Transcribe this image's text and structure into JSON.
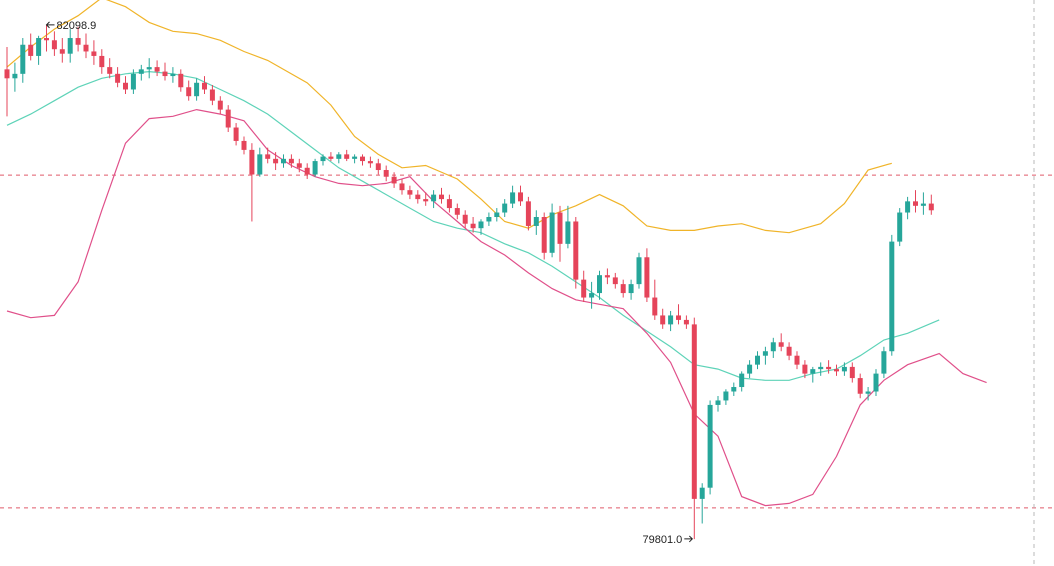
{
  "chart_data": {
    "type": "candlestick",
    "overlay": "bollinger-bands",
    "colors": {
      "up": "#26a69a",
      "down": "#e5445a",
      "upper_band": "#f0b429",
      "middle_band": "#5ed3b8",
      "lower_band": "#e0508a",
      "ref_line": "#e05a6a",
      "crosshair": "#b8b8b8"
    },
    "y_range": [
      79680,
      82210
    ],
    "grid": false,
    "annotations": {
      "high_label": "82098.9",
      "low_label": "79801.0",
      "high_value": 82098.9,
      "low_value": 79801.0
    },
    "reference_levels": [
      81427,
      79940
    ],
    "candles": [
      [
        81900,
        82000,
        81690,
        81860
      ],
      [
        81860,
        81930,
        81800,
        81880
      ],
      [
        81880,
        82040,
        81840,
        82010
      ],
      [
        82010,
        82060,
        81940,
        81960
      ],
      [
        81960,
        82050,
        81920,
        82040
      ],
      [
        82040,
        82100,
        81980,
        82030
      ],
      [
        82030,
        82070,
        81960,
        81990
      ],
      [
        81990,
        82040,
        81930,
        81970
      ],
      [
        81970,
        82080,
        81930,
        82040
      ],
      [
        82040,
        82090,
        81980,
        82010
      ],
      [
        82010,
        82060,
        81950,
        81980
      ],
      [
        81980,
        82030,
        81920,
        81960
      ],
      [
        81960,
        81990,
        81880,
        81910
      ],
      [
        81910,
        81950,
        81860,
        81880
      ],
      [
        81880,
        81910,
        81820,
        81840
      ],
      [
        81840,
        81870,
        81790,
        81810
      ],
      [
        81810,
        81900,
        81790,
        81880
      ],
      [
        81880,
        81920,
        81850,
        81900
      ],
      [
        81900,
        81950,
        81860,
        81910
      ],
      [
        81910,
        81940,
        81870,
        81890
      ],
      [
        81890,
        81930,
        81850,
        81870
      ],
      [
        81870,
        81910,
        81840,
        81880
      ],
      [
        81880,
        81900,
        81800,
        81820
      ],
      [
        81820,
        81850,
        81760,
        81780
      ],
      [
        81780,
        81860,
        81760,
        81840
      ],
      [
        81840,
        81870,
        81790,
        81810
      ],
      [
        81810,
        81830,
        81740,
        81760
      ],
      [
        81760,
        81780,
        81700,
        81720
      ],
      [
        81720,
        81740,
        81620,
        81640
      ],
      [
        81640,
        81660,
        81560,
        81580
      ],
      [
        81580,
        81600,
        81520,
        81540
      ],
      [
        81540,
        81570,
        81220,
        81430
      ],
      [
        81430,
        81550,
        81420,
        81520
      ],
      [
        81520,
        81550,
        81480,
        81500
      ],
      [
        81500,
        81530,
        81450,
        81480
      ],
      [
        81480,
        81520,
        81460,
        81500
      ],
      [
        81500,
        81520,
        81460,
        81480
      ],
      [
        81480,
        81500,
        81440,
        81460
      ],
      [
        81460,
        81480,
        81410,
        81430
      ],
      [
        81430,
        81500,
        81420,
        81490
      ],
      [
        81490,
        81520,
        81470,
        81510
      ],
      [
        81510,
        81530,
        81490,
        81500
      ],
      [
        81500,
        81530,
        81480,
        81520
      ],
      [
        81520,
        81540,
        81490,
        81500
      ],
      [
        81500,
        81520,
        81480,
        81510
      ],
      [
        81510,
        81520,
        81470,
        81490
      ],
      [
        81490,
        81510,
        81460,
        81480
      ],
      [
        81480,
        81500,
        81430,
        81450
      ],
      [
        81450,
        81470,
        81400,
        81420
      ],
      [
        81420,
        81440,
        81370,
        81390
      ],
      [
        81390,
        81410,
        81340,
        81360
      ],
      [
        81360,
        81380,
        81320,
        81340
      ],
      [
        81340,
        81360,
        81300,
        81320
      ],
      [
        81320,
        81350,
        81290,
        81310
      ],
      [
        81310,
        81360,
        81280,
        81340
      ],
      [
        81340,
        81370,
        81300,
        81320
      ],
      [
        81320,
        81340,
        81260,
        81280
      ],
      [
        81280,
        81300,
        81230,
        81250
      ],
      [
        81250,
        81270,
        81190,
        81210
      ],
      [
        81210,
        81240,
        81170,
        81190
      ],
      [
        81190,
        81230,
        81160,
        81220
      ],
      [
        81220,
        81260,
        81200,
        81240
      ],
      [
        81240,
        81280,
        81220,
        81260
      ],
      [
        81260,
        81320,
        81240,
        81300
      ],
      [
        81300,
        81380,
        81280,
        81350
      ],
      [
        81350,
        81380,
        81290,
        81310
      ],
      [
        81310,
        81330,
        81180,
        81200
      ],
      [
        81200,
        81270,
        81160,
        81240
      ],
      [
        81240,
        81260,
        81050,
        81080
      ],
      [
        81080,
        81300,
        81060,
        81260
      ],
      [
        81260,
        81290,
        81040,
        81120
      ],
      [
        81120,
        81290,
        81100,
        81220
      ],
      [
        81220,
        81240,
        80920,
        80960
      ],
      [
        80960,
        81000,
        80860,
        80880
      ],
      [
        80880,
        80950,
        80830,
        80900
      ],
      [
        80900,
        81000,
        80870,
        80980
      ],
      [
        80980,
        81010,
        80940,
        80970
      ],
      [
        80970,
        80990,
        80920,
        80940
      ],
      [
        80940,
        80960,
        80880,
        80900
      ],
      [
        80900,
        80960,
        80870,
        80940
      ],
      [
        80940,
        81080,
        80920,
        81060
      ],
      [
        81060,
        81100,
        80860,
        80880
      ],
      [
        80880,
        80960,
        80780,
        80800
      ],
      [
        80800,
        80830,
        80740,
        80760
      ],
      [
        80760,
        80820,
        80730,
        80800
      ],
      [
        80800,
        80850,
        80760,
        80780
      ],
      [
        80780,
        80800,
        80740,
        80760
      ],
      [
        80760,
        80790,
        79800,
        79980
      ],
      [
        79980,
        80050,
        79870,
        80030
      ],
      [
        80030,
        80420,
        80000,
        80400
      ],
      [
        80400,
        80440,
        80370,
        80420
      ],
      [
        80420,
        80470,
        80400,
        80460
      ],
      [
        80460,
        80500,
        80440,
        80480
      ],
      [
        80480,
        80550,
        80460,
        80540
      ],
      [
        80540,
        80600,
        80520,
        80580
      ],
      [
        80580,
        80640,
        80560,
        80620
      ],
      [
        80620,
        80660,
        80580,
        80640
      ],
      [
        80640,
        80700,
        80610,
        80680
      ],
      [
        80680,
        80720,
        80640,
        80660
      ],
      [
        80660,
        80680,
        80600,
        80620
      ],
      [
        80620,
        80640,
        80560,
        80580
      ],
      [
        80580,
        80600,
        80520,
        80540
      ],
      [
        80540,
        80570,
        80500,
        80560
      ],
      [
        80560,
        80590,
        80530,
        80570
      ],
      [
        80570,
        80600,
        80540,
        80560
      ],
      [
        80560,
        80580,
        80530,
        80550
      ],
      [
        80550,
        80590,
        80530,
        80570
      ],
      [
        80570,
        80590,
        80500,
        80520
      ],
      [
        80520,
        80540,
        80430,
        80450
      ],
      [
        80450,
        80480,
        80420,
        80460
      ],
      [
        80460,
        80560,
        80440,
        80540
      ],
      [
        80540,
        80660,
        80520,
        80640
      ],
      [
        80640,
        81160,
        80620,
        81130
      ],
      [
        81130,
        81280,
        81110,
        81260
      ],
      [
        81260,
        81330,
        81230,
        81310
      ],
      [
        81310,
        81360,
        81260,
        81290
      ],
      [
        81290,
        81350,
        81250,
        81300
      ],
      [
        81300,
        81340,
        81250,
        81270
      ]
    ],
    "upper_band": [
      [
        0,
        81910
      ],
      [
        3,
        82000
      ],
      [
        6,
        82080
      ],
      [
        9,
        82140
      ],
      [
        12,
        82220
      ],
      [
        15,
        82180
      ],
      [
        18,
        82110
      ],
      [
        21,
        82070
      ],
      [
        24,
        82060
      ],
      [
        27,
        82030
      ],
      [
        30,
        81980
      ],
      [
        33,
        81940
      ],
      [
        35,
        81900
      ],
      [
        38,
        81840
      ],
      [
        41,
        81740
      ],
      [
        44,
        81600
      ],
      [
        47,
        81520
      ],
      [
        50,
        81460
      ],
      [
        53,
        81470
      ],
      [
        57,
        81410
      ],
      [
        60,
        81320
      ],
      [
        63,
        81220
      ],
      [
        66,
        81190
      ],
      [
        69,
        81250
      ],
      [
        72,
        81290
      ],
      [
        75,
        81340
      ],
      [
        78,
        81290
      ],
      [
        81,
        81200
      ],
      [
        84,
        81180
      ],
      [
        87,
        81180
      ],
      [
        90,
        81200
      ],
      [
        93,
        81210
      ],
      [
        96,
        81180
      ],
      [
        99,
        81170
      ],
      [
        103,
        81210
      ],
      [
        106,
        81300
      ],
      [
        109,
        81450
      ],
      [
        112,
        81480
      ]
    ],
    "middle_band": [
      [
        0,
        81650
      ],
      [
        3,
        81700
      ],
      [
        6,
        81760
      ],
      [
        9,
        81820
      ],
      [
        12,
        81860
      ],
      [
        15,
        81880
      ],
      [
        18,
        81890
      ],
      [
        21,
        81880
      ],
      [
        24,
        81860
      ],
      [
        27,
        81810
      ],
      [
        30,
        81760
      ],
      [
        33,
        81700
      ],
      [
        36,
        81620
      ],
      [
        39,
        81540
      ],
      [
        42,
        81460
      ],
      [
        45,
        81400
      ],
      [
        48,
        81340
      ],
      [
        51,
        81280
      ],
      [
        54,
        81220
      ],
      [
        57,
        81190
      ],
      [
        60,
        81170
      ],
      [
        63,
        81120
      ],
      [
        66,
        81080
      ],
      [
        69,
        81020
      ],
      [
        72,
        80950
      ],
      [
        75,
        80880
      ],
      [
        78,
        80800
      ],
      [
        81,
        80730
      ],
      [
        84,
        80660
      ],
      [
        87,
        80580
      ],
      [
        90,
        80560
      ],
      [
        93,
        80520
      ],
      [
        96,
        80510
      ],
      [
        99,
        80510
      ],
      [
        102,
        80540
      ],
      [
        105,
        80560
      ],
      [
        108,
        80620
      ],
      [
        111,
        80690
      ],
      [
        114,
        80720
      ],
      [
        118,
        80780
      ]
    ],
    "lower_band": [
      [
        0,
        80820
      ],
      [
        3,
        80790
      ],
      [
        6,
        80800
      ],
      [
        9,
        80950
      ],
      [
        12,
        81270
      ],
      [
        15,
        81570
      ],
      [
        18,
        81680
      ],
      [
        21,
        81690
      ],
      [
        24,
        81720
      ],
      [
        27,
        81700
      ],
      [
        30,
        81670
      ],
      [
        33,
        81540
      ],
      [
        36,
        81470
      ],
      [
        39,
        81420
      ],
      [
        42,
        81390
      ],
      [
        45,
        81380
      ],
      [
        48,
        81390
      ],
      [
        51,
        81420
      ],
      [
        54,
        81310
      ],
      [
        57,
        81220
      ],
      [
        60,
        81130
      ],
      [
        63,
        81070
      ],
      [
        66,
        80990
      ],
      [
        69,
        80920
      ],
      [
        72,
        80870
      ],
      [
        75,
        80850
      ],
      [
        78,
        80830
      ],
      [
        81,
        80720
      ],
      [
        84,
        80590
      ],
      [
        87,
        80360
      ],
      [
        90,
        80260
      ],
      [
        93,
        79990
      ],
      [
        96,
        79950
      ],
      [
        99,
        79960
      ],
      [
        102,
        80000
      ],
      [
        105,
        80170
      ],
      [
        108,
        80400
      ],
      [
        111,
        80510
      ],
      [
        114,
        80580
      ],
      [
        118,
        80630
      ],
      [
        121,
        80540
      ],
      [
        124,
        80500
      ]
    ]
  }
}
